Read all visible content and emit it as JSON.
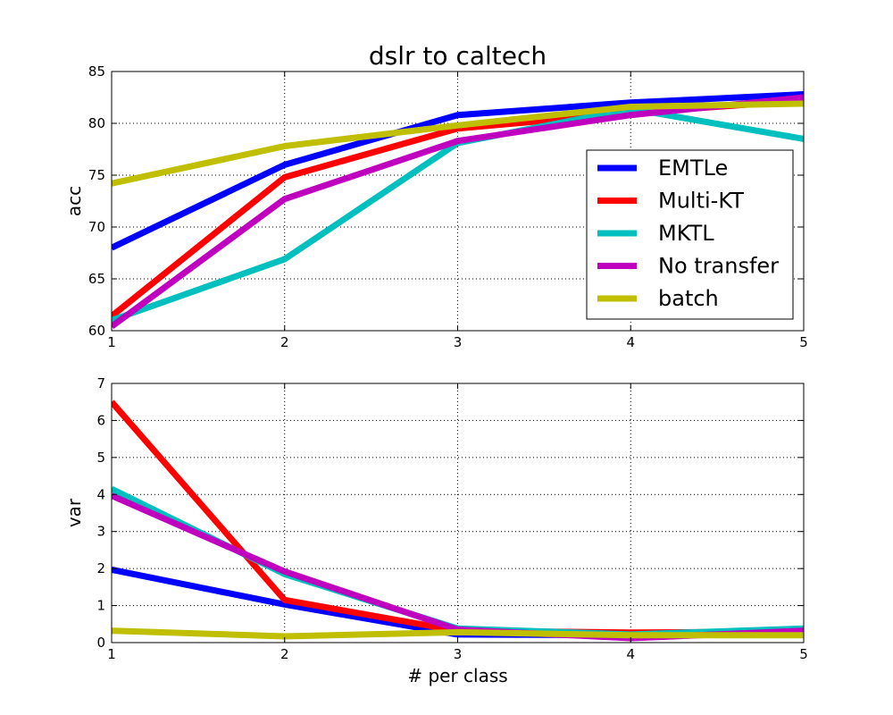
{
  "chart_data": [
    {
      "type": "line",
      "title": "dslr to caltech",
      "xlabel": "",
      "ylabel": "acc",
      "x": [
        1,
        2,
        3,
        4,
        5
      ],
      "xlim": [
        1,
        5
      ],
      "ylim": [
        60,
        85
      ],
      "xticks": [
        1,
        2,
        3,
        4,
        5
      ],
      "yticks": [
        60,
        65,
        70,
        75,
        80,
        85
      ],
      "grid": true,
      "legend": "center-right",
      "series": [
        {
          "name": "EMTLe",
          "color": "#0000ff",
          "values": [
            68.0,
            76.0,
            80.8,
            82.0,
            82.8
          ]
        },
        {
          "name": "Multi-KT",
          "color": "#ff0000",
          "values": [
            61.4,
            74.8,
            79.5,
            81.0,
            82.2
          ]
        },
        {
          "name": "MKTL",
          "color": "#00bfbf",
          "values": [
            61.0,
            66.9,
            78.1,
            81.4,
            78.5
          ]
        },
        {
          "name": "No transfer",
          "color": "#bf00bf",
          "values": [
            60.4,
            72.7,
            78.3,
            80.8,
            82.5
          ]
        },
        {
          "name": "batch",
          "color": "#bfbf00",
          "values": [
            74.2,
            77.8,
            79.8,
            81.6,
            81.9
          ]
        }
      ]
    },
    {
      "type": "line",
      "title": "",
      "xlabel": "# per class",
      "ylabel": "var",
      "x": [
        1,
        2,
        3,
        4,
        5
      ],
      "xlim": [
        1,
        5
      ],
      "ylim": [
        0,
        7
      ],
      "xticks": [
        1,
        2,
        3,
        4,
        5
      ],
      "yticks": [
        0,
        1,
        2,
        3,
        4,
        5,
        6,
        7
      ],
      "grid": true,
      "legend": "none",
      "series": [
        {
          "color": "#0000ff",
          "values": [
            1.97,
            1.03,
            0.22,
            0.2,
            0.27
          ]
        },
        {
          "color": "#ff0000",
          "values": [
            6.5,
            1.15,
            0.32,
            0.27,
            0.3
          ]
        },
        {
          "color": "#00bfbf",
          "values": [
            4.15,
            1.85,
            0.38,
            0.22,
            0.38
          ]
        },
        {
          "color": "#bf00bf",
          "values": [
            3.97,
            1.92,
            0.35,
            0.12,
            0.32
          ]
        },
        {
          "color": "#bfbf00",
          "values": [
            0.32,
            0.17,
            0.28,
            0.2,
            0.2
          ]
        }
      ]
    }
  ]
}
